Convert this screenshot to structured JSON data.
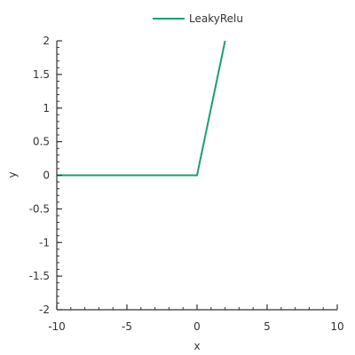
{
  "chart_data": {
    "type": "line",
    "xlabel": "x",
    "ylabel": "y",
    "xlim": [
      -10,
      10
    ],
    "ylim": [
      -2,
      2
    ],
    "x_ticks": [
      -10,
      -5,
      0,
      5,
      10
    ],
    "x_tick_labels": [
      "-10",
      "-5",
      "0",
      "5",
      "10"
    ],
    "y_ticks": [
      2,
      1.5,
      1,
      0.5,
      0,
      -0.5,
      -1,
      -1.5,
      -2
    ],
    "y_tick_labels": [
      "2",
      "1.5",
      "1",
      "0.5",
      "0",
      "-0.5",
      "-1",
      "-1.5",
      "-2"
    ],
    "grid": false,
    "legend_position": "top-center",
    "series": [
      {
        "name": "LeakyRelu",
        "color": "#1b9e77",
        "x": [
          -10,
          0,
          2
        ],
        "y": [
          0,
          0,
          2
        ]
      }
    ]
  }
}
